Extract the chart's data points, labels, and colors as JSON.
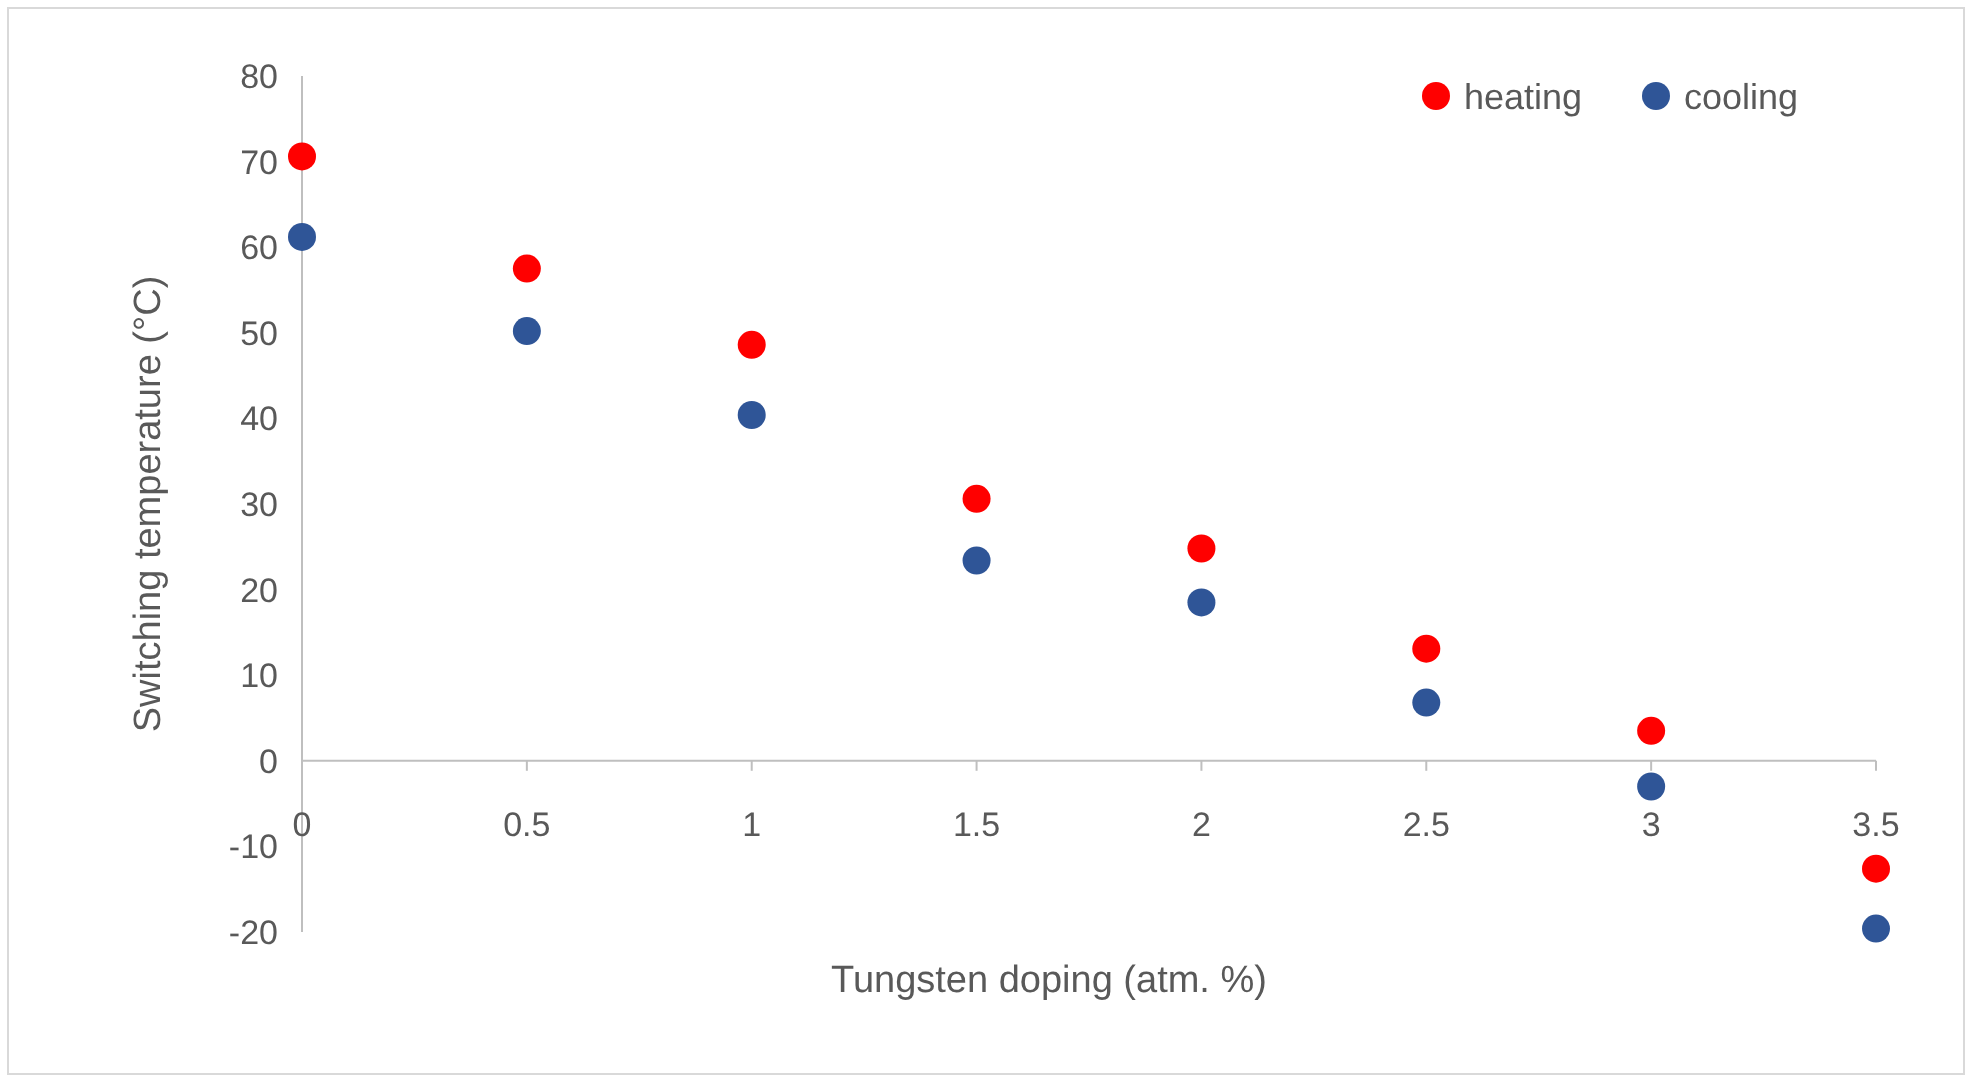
{
  "chart_data": {
    "type": "scatter",
    "xlabel": "Tungsten doping (atm. %)",
    "ylabel": "Switching temperature (°C)",
    "x": [
      0,
      0.5,
      1,
      1.5,
      2,
      2.5,
      3,
      3.5
    ],
    "series": [
      {
        "name": "heating",
        "color": "#ff0000",
        "values": [
          70.6,
          57.5,
          48.6,
          30.6,
          24.8,
          13.1,
          3.5,
          -12.6
        ]
      },
      {
        "name": "cooling",
        "color": "#2f5597",
        "values": [
          61.2,
          50.2,
          40.4,
          23.4,
          18.5,
          6.8,
          -3,
          -19.6
        ]
      }
    ],
    "xlim": [
      0,
      3.5
    ],
    "xticks": [
      0,
      0.5,
      1,
      1.5,
      2,
      2.5,
      3,
      3.5
    ],
    "ylim": [
      -20,
      80
    ],
    "yticks": [
      -20,
      -10,
      0,
      10,
      20,
      30,
      40,
      50,
      60,
      70,
      80
    ],
    "grid": false,
    "legend": "top right",
    "marker": "circle"
  }
}
